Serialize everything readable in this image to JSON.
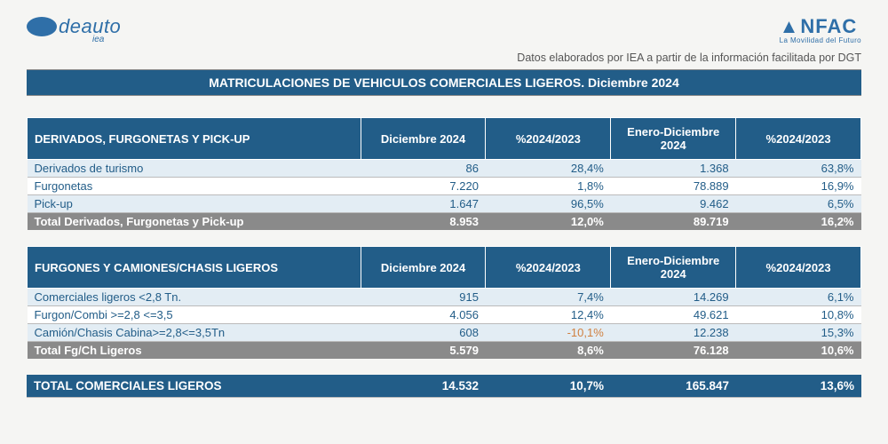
{
  "header": {
    "logo_left": "deauto",
    "logo_left_sub": "iea",
    "logo_right": "NFAC",
    "logo_right_sub": "La Movilidad del Futuro",
    "subtitle": "Datos elaborados por IEA a partir de la información facilitada por DGT",
    "title": "MATRICULACIONES DE VEHICULOS COMERCIALES LIGEROS. Diciembre 2024"
  },
  "columns": [
    "Diciembre 2024",
    "%2024/2023",
    "Enero-Diciembre 2024",
    "%2024/2023"
  ],
  "table1": {
    "title": "DERIVADOS, FURGONETAS Y PICK-UP",
    "rows": [
      {
        "label": "Derivados de turismo",
        "v": [
          "86",
          "28,4%",
          "1.368",
          "63,8%"
        ],
        "alt": true
      },
      {
        "label": "Furgonetas",
        "v": [
          "7.220",
          "1,8%",
          "78.889",
          "16,9%"
        ],
        "alt": false
      },
      {
        "label": "Pick-up",
        "v": [
          "1.647",
          "96,5%",
          "9.462",
          "6,5%"
        ],
        "alt": true
      }
    ],
    "total": {
      "label": "Total Derivados, Furgonetas y Pick-up",
      "v": [
        "8.953",
        "12,0%",
        "89.719",
        "16,2%"
      ]
    }
  },
  "table2": {
    "title": "FURGONES Y CAMIONES/CHASIS LIGEROS",
    "rows": [
      {
        "label": "Comerciales ligeros <2,8 Tn.",
        "v": [
          "915",
          "7,4%",
          "14.269",
          "6,1%"
        ],
        "alt": true
      },
      {
        "label": "Furgon/Combi >=2,8 <=3,5",
        "v": [
          "4.056",
          "12,4%",
          "49.621",
          "10,8%"
        ],
        "alt": false
      },
      {
        "label": "Camión/Chasis Cabina>=2,8<=3,5Tn",
        "v": [
          "608",
          "-10,1%",
          "12.238",
          "15,3%"
        ],
        "alt": true,
        "neg_idx": 1
      }
    ],
    "total": {
      "label": "Total Fg/Ch Ligeros",
      "v": [
        "5.579",
        "8,6%",
        "76.128",
        "10,6%"
      ]
    }
  },
  "grand_total": {
    "label": "TOTAL COMERCIALES LIGEROS",
    "v": [
      "14.532",
      "10,7%",
      "165.847",
      "13,6%"
    ]
  },
  "styling": {
    "header_bg": "#225d88",
    "header_fg": "#ffffff",
    "row_alt_bg": "#e3edf4",
    "row_bg": "#ffffff",
    "row_fg": "#225d88",
    "total_bg": "#8a8a8a",
    "total_fg": "#ffffff",
    "neg_color": "#d08040",
    "page_bg": "#f5f5f3",
    "font_family": "Century Gothic",
    "title_fontsize": 14,
    "body_fontsize": 13
  }
}
